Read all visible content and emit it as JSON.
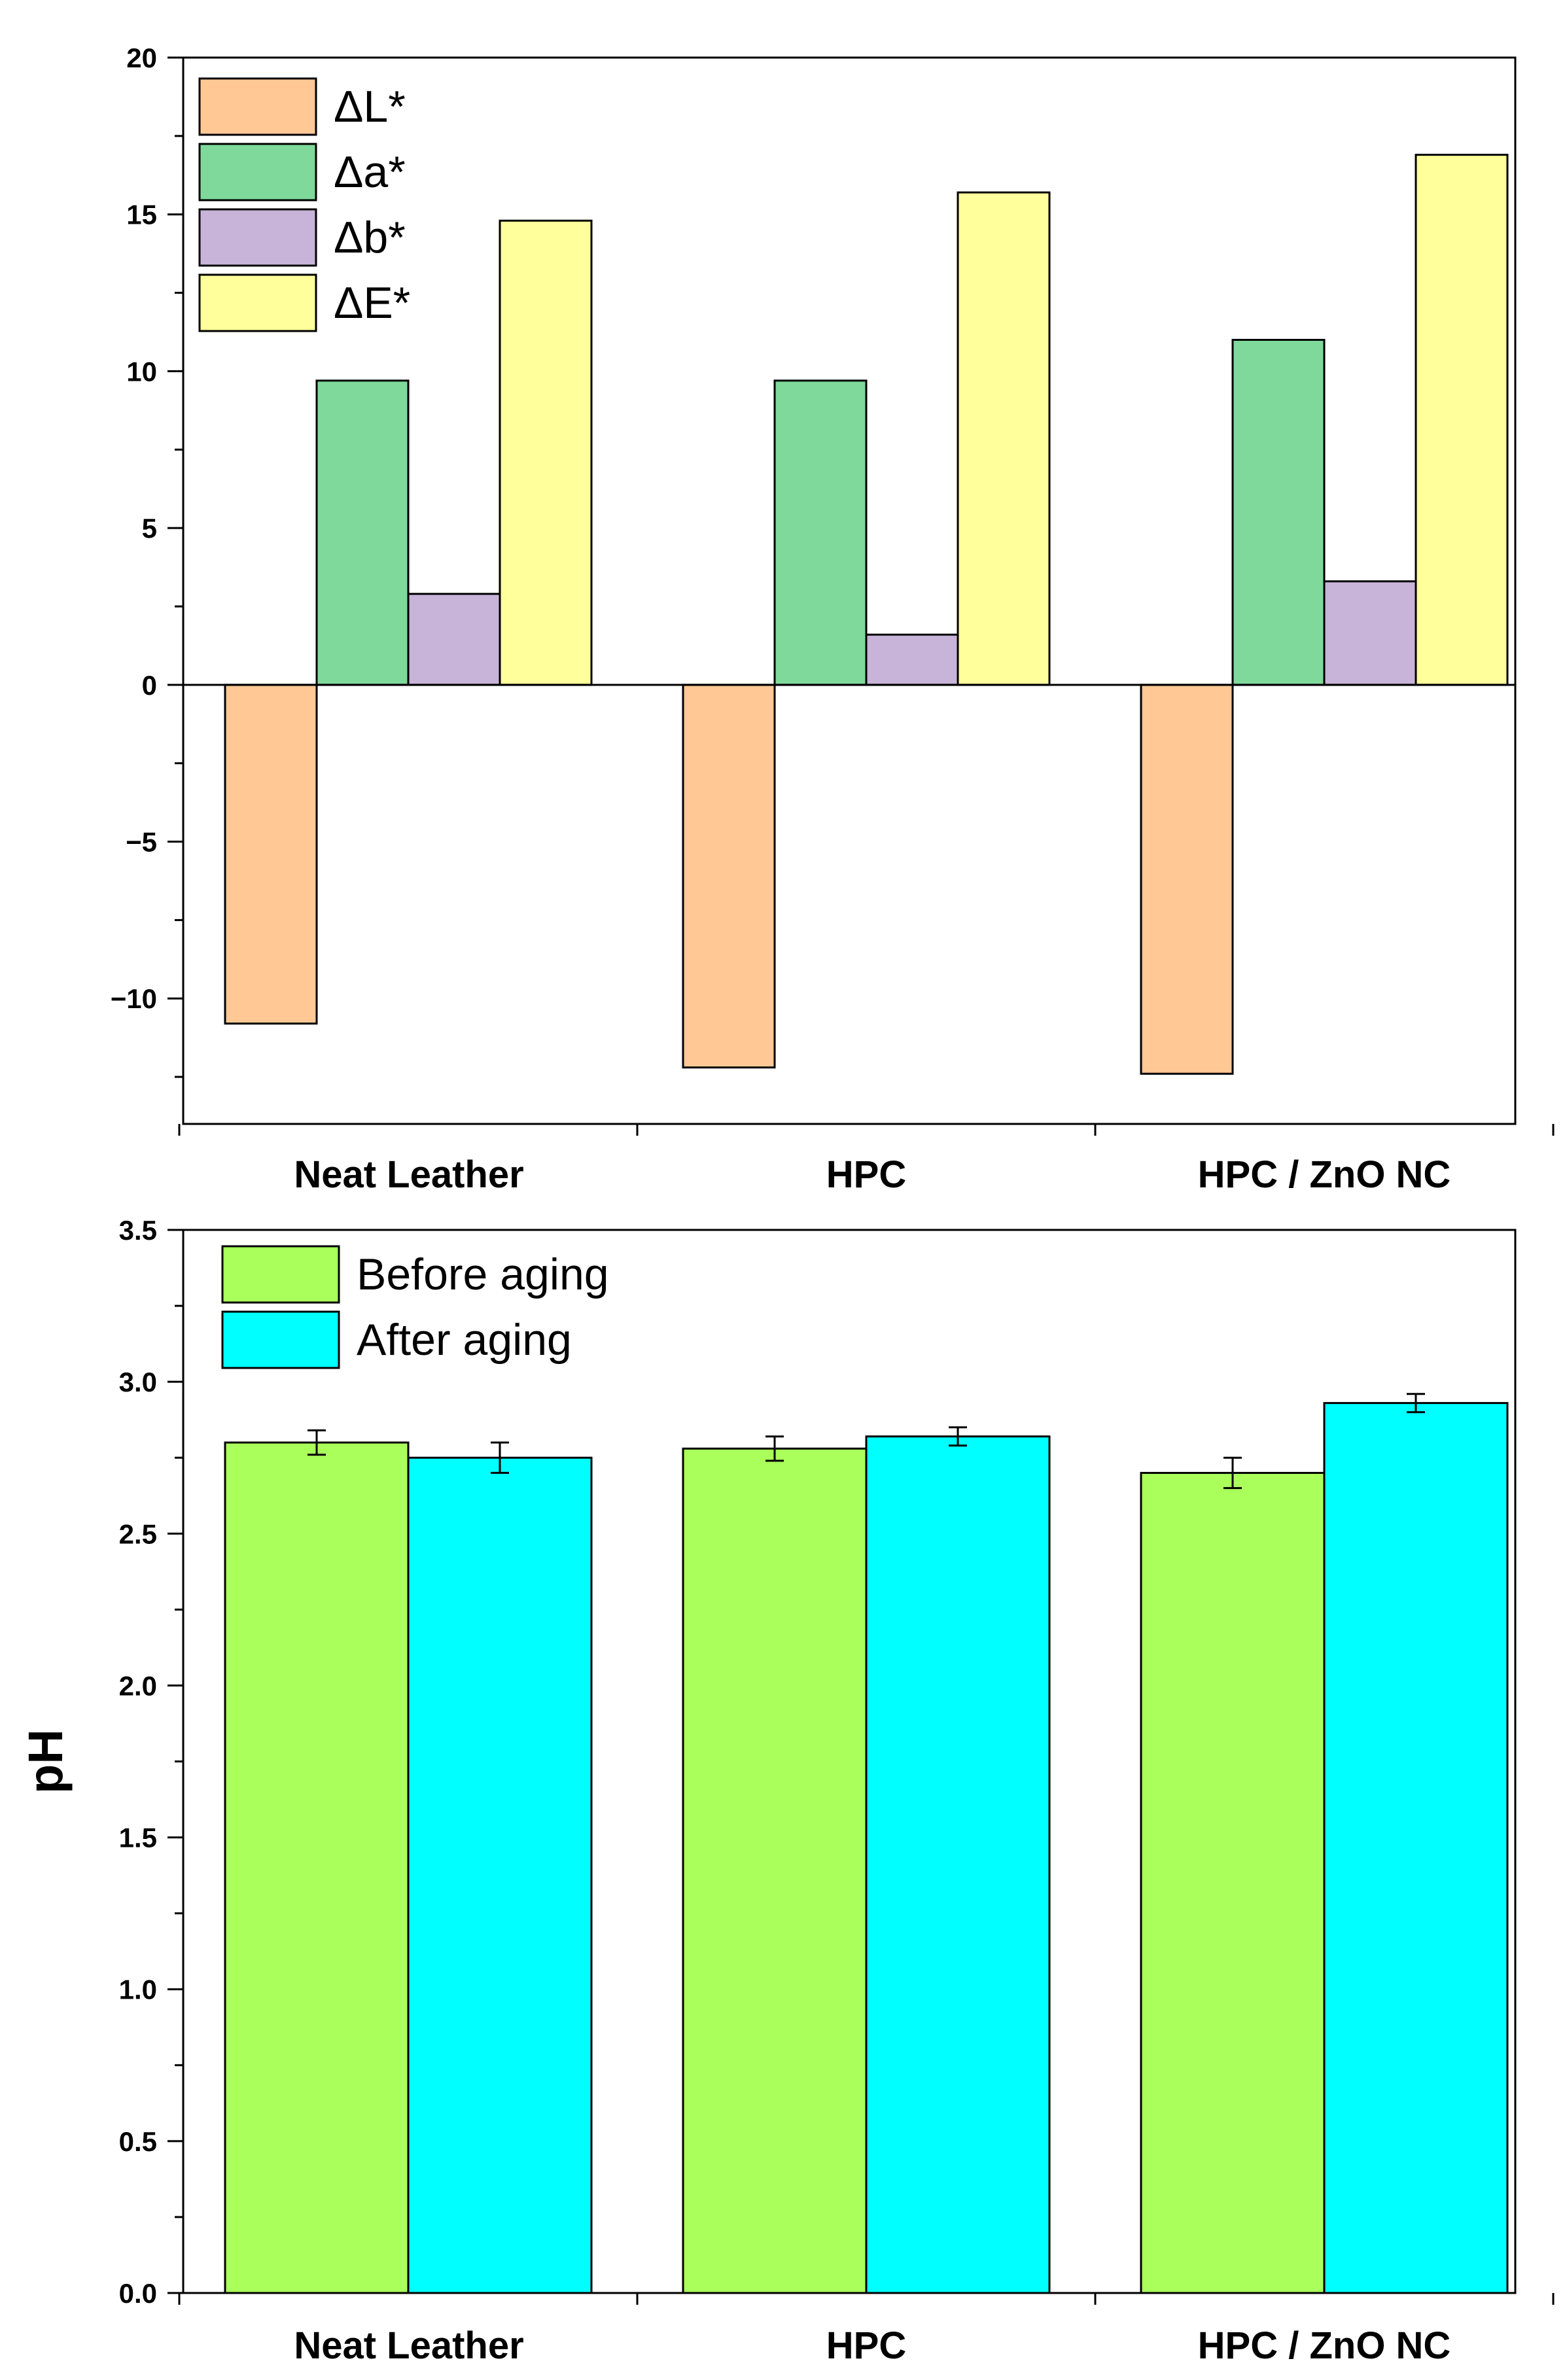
{
  "chart_data": [
    {
      "type": "bar",
      "title": "",
      "xlabel": "",
      "ylabel": "",
      "categories": [
        "Neat Leather",
        "HPC",
        "HPC / ZnO NC"
      ],
      "series": [
        {
          "name": "ΔL*",
          "color": "#FFC895",
          "values": [
            -10.8,
            -12.2,
            -12.4
          ]
        },
        {
          "name": "Δa*",
          "color": "#7FD99A",
          "values": [
            9.7,
            9.7,
            11.0
          ]
        },
        {
          "name": "Δb*",
          "color": "#C8B3D9",
          "values": [
            2.9,
            1.6,
            3.3
          ]
        },
        {
          "name": "ΔE*",
          "color": "#FFFF9B",
          "values": [
            14.8,
            15.7,
            16.9
          ]
        }
      ],
      "ylim": [
        -14,
        20
      ],
      "yticks": [
        -10,
        -5,
        0,
        5,
        10,
        15,
        20
      ],
      "ytick_labels": [
        "−10",
        "−5",
        "0",
        "5",
        "10",
        "15",
        "20"
      ],
      "legend": "top-left"
    },
    {
      "type": "bar",
      "title": "",
      "xlabel": "",
      "ylabel": "pH",
      "categories": [
        "Neat Leather",
        "HPC",
        "HPC / ZnO NC"
      ],
      "series": [
        {
          "name": "Before aging",
          "color": "#AAFF5A",
          "values": [
            2.8,
            2.78,
            2.7
          ],
          "errors": [
            0.04,
            0.04,
            0.05
          ]
        },
        {
          "name": "After aging",
          "color": "#00FFFF",
          "values": [
            2.75,
            2.82,
            2.93
          ],
          "errors": [
            0.05,
            0.03,
            0.03
          ]
        }
      ],
      "ylim": [
        0,
        3.5
      ],
      "yticks": [
        0,
        0.5,
        1.0,
        1.5,
        2.0,
        2.5,
        3.0,
        3.5
      ],
      "ytick_labels": [
        "0.0",
        "0.5",
        "1.0",
        "1.5",
        "2.0",
        "2.5",
        "3.0",
        "3.5"
      ],
      "legend": "top-left"
    }
  ]
}
